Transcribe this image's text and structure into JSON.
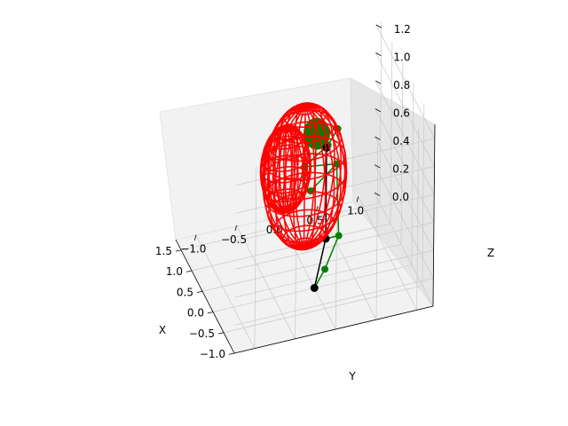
{
  "chart_data": {
    "type": "scatter",
    "projection": "3d",
    "grid": true,
    "colors": {
      "pane_xy": "#f2f2f2",
      "pane_xz": "#f2f2f2",
      "pane_yz": "#e6e6e6",
      "grid": "#c8c8c8",
      "axis_line": "#000000",
      "skeleton": "#000000",
      "limbs": "#008000",
      "head": "#008000",
      "spheres": "#ff0000"
    },
    "axes": {
      "x": {
        "label": "X",
        "lim": [
          -1.0,
          1.75
        ],
        "ticks": [
          -1.0,
          -0.5,
          0.0,
          0.5,
          1.0,
          1.5
        ],
        "tick_labels": [
          "−1.0",
          "−0.5",
          "0.0",
          "0.5",
          "1.0",
          "1.5"
        ]
      },
      "y": {
        "label": "Y",
        "lim": [
          -1.25,
          1.2
        ],
        "ticks": [
          -1.0,
          -0.5,
          0.0,
          0.5,
          1.0
        ],
        "tick_labels": [
          "−1.0",
          "−0.5",
          "0.0",
          "0.5",
          "1.0"
        ]
      },
      "z": {
        "label": "Z",
        "lim": [
          0.0,
          1.3
        ],
        "ticks": [
          0.0,
          0.2,
          0.4,
          0.6,
          0.8,
          1.0,
          1.2
        ],
        "tick_labels": [
          "0.0",
          "0.2",
          "0.4",
          "0.6",
          "0.8",
          "1.0",
          "1.2"
        ]
      }
    },
    "skeleton_points": [
      {
        "x": 0.0,
        "y": 0.0,
        "z": 0.0
      },
      {
        "x": -0.5,
        "y": 0.0,
        "z": 0.5
      },
      {
        "x": -0.5,
        "y": 0.0,
        "z": 1.15
      }
    ],
    "limb_points": [
      {
        "x": -0.1,
        "y": 0.1,
        "z": 0.15
      },
      {
        "x": -0.35,
        "y": 0.2,
        "z": 0.45
      },
      {
        "x": -0.6,
        "y": 0.1,
        "z": 1.05
      },
      {
        "x": -0.9,
        "y": -0.3,
        "z": 1.0
      },
      {
        "x": -0.8,
        "y": -0.35,
        "z": 1.15
      },
      {
        "x": -0.75,
        "y": -0.05,
        "z": 1.25
      },
      {
        "x": -0.45,
        "y": 0.15,
        "z": 1.25
      }
    ],
    "head": {
      "x": -0.6,
      "y": -0.15,
      "z": 1.3
    },
    "spheres": [
      {
        "x": -0.3,
        "y": -0.45,
        "z": 1.0,
        "r": 0.3
      },
      {
        "x": 0.5,
        "y": 0.0,
        "z": 0.65,
        "r": 0.5
      }
    ]
  }
}
